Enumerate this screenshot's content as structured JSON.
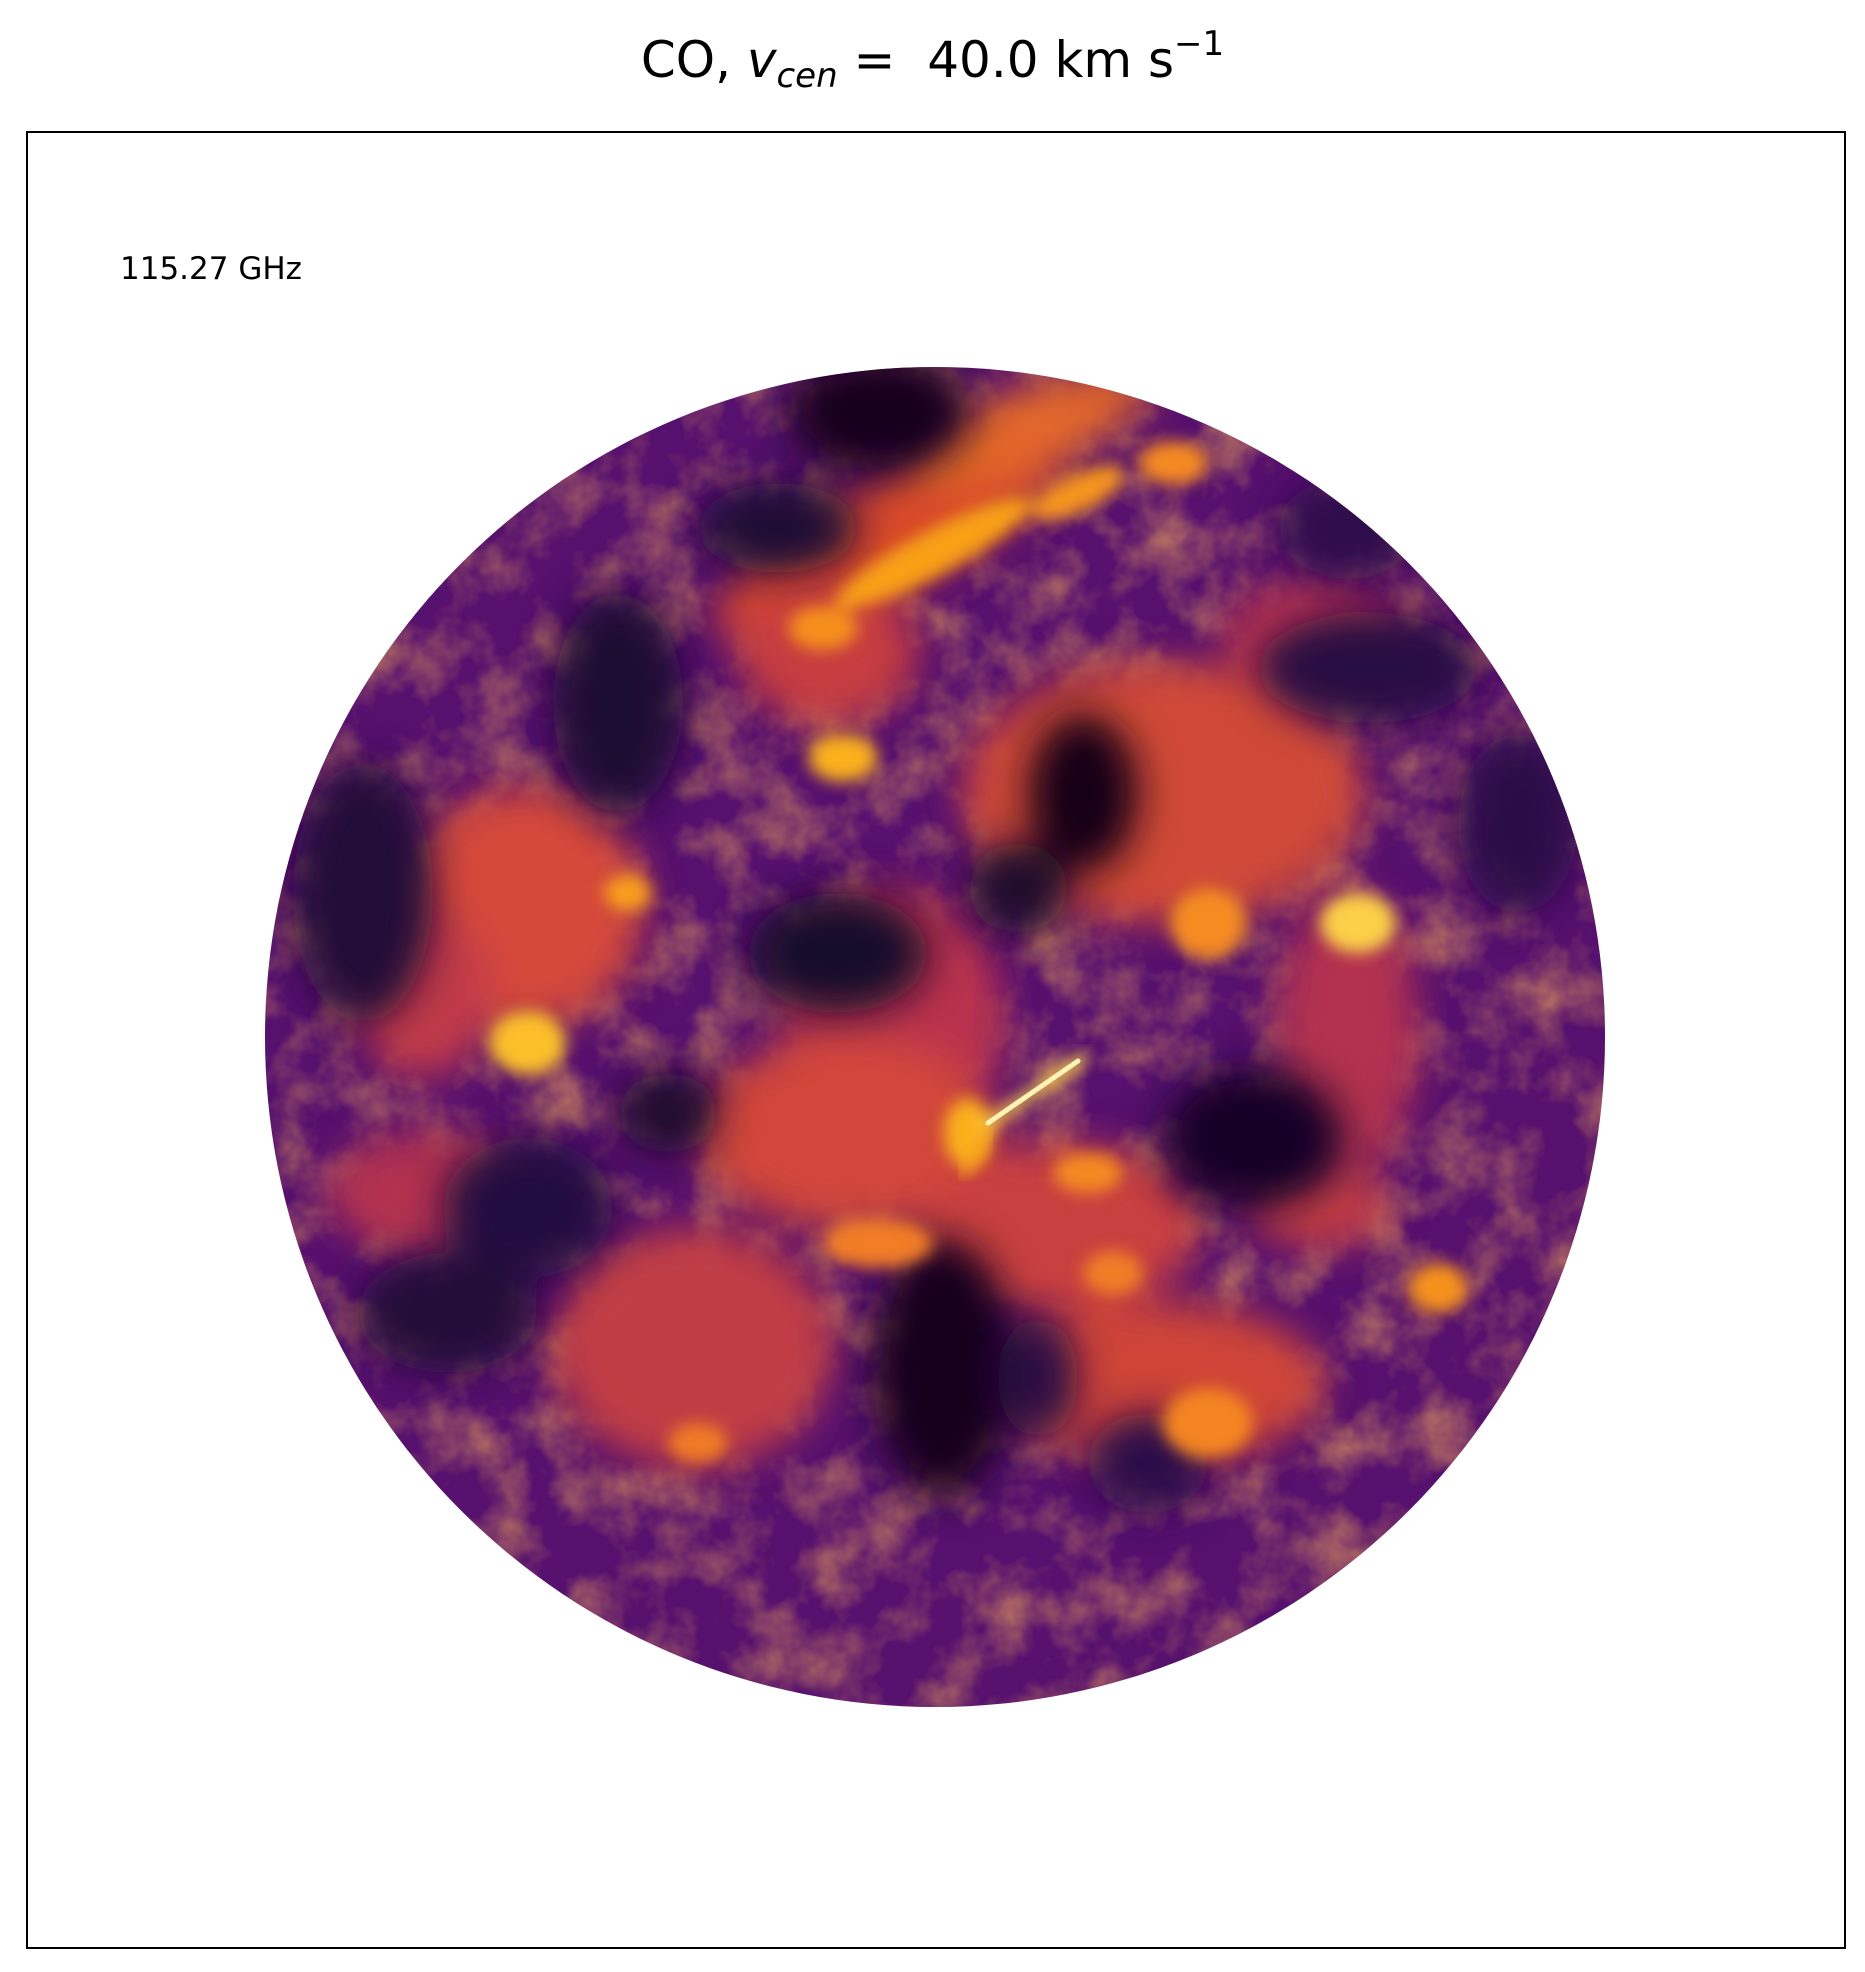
{
  "figure": {
    "title_main": "CO, ",
    "title_symbol": "v",
    "title_subscript": "cen",
    "title_value": " =  40.0 km s",
    "title_superscript": "−1",
    "frequency_label": "115.27 GHz"
  },
  "colors": {
    "colormap": "inferno",
    "frame": "#000000",
    "background": "#ffffff"
  }
}
